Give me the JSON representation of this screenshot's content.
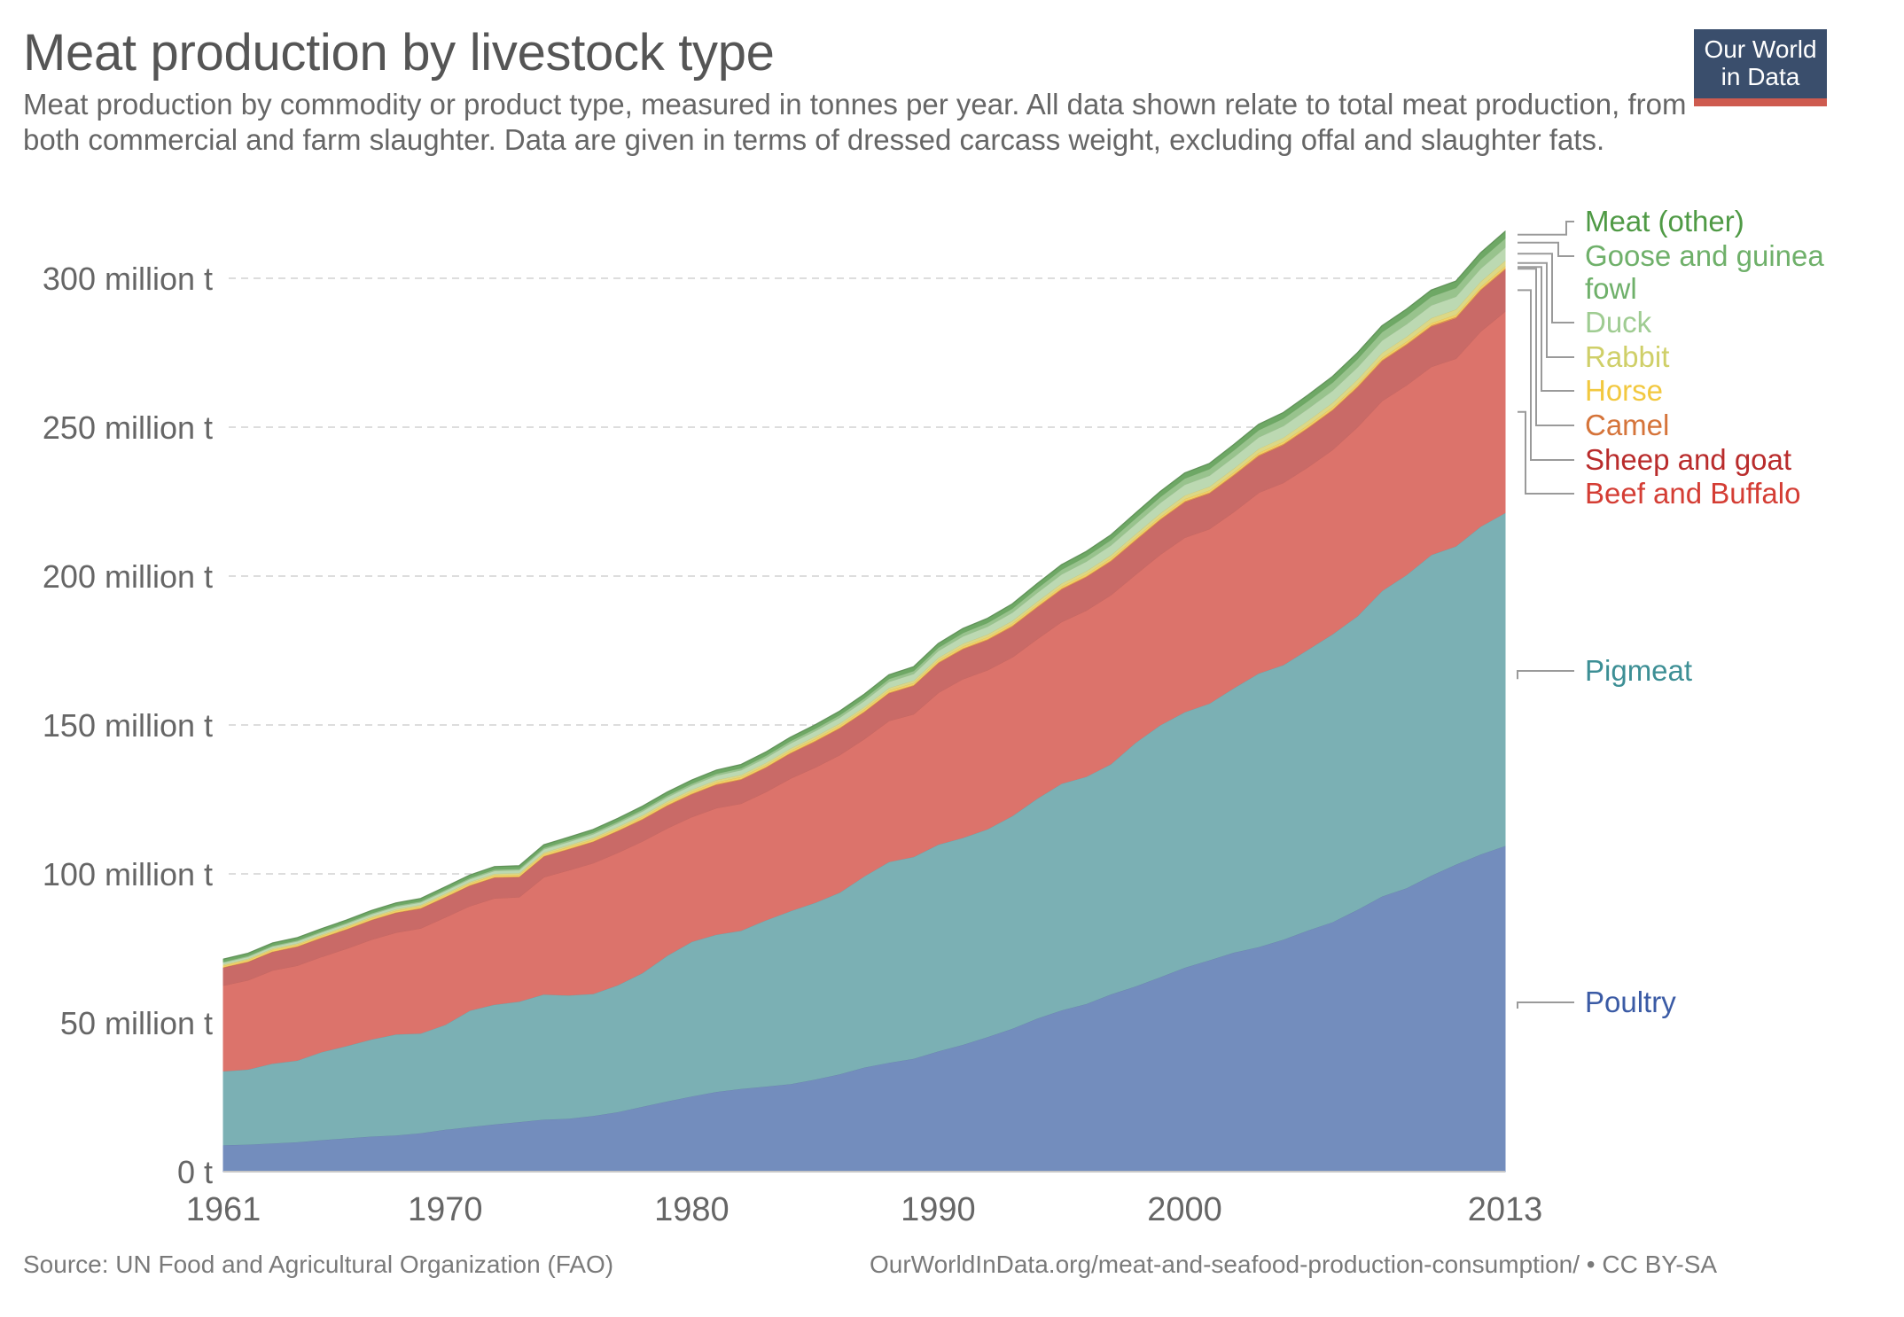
{
  "header": {
    "title": "Meat production by livestock type",
    "subtitle": "Meat production by commodity or product type, measured in tonnes per year. All data shown relate to total meat production, from both commercial and farm slaughter. Data are given in terms of dressed carcass weight, excluding offal and slaughter fats."
  },
  "logo": {
    "line1": "Our World",
    "line2": "in Data",
    "bg_color": "#3a4e6c",
    "accent_color": "#ce5b4f"
  },
  "footer": {
    "source": "Source: UN Food and Agricultural Organization (FAO)",
    "license": "OurWorldInData.org/meat-and-seafood-production-consumption/ • CC BY-SA"
  },
  "chart_data": {
    "type": "area",
    "stacked": true,
    "title": "Meat production by livestock type",
    "xlabel": "",
    "ylabel": "",
    "unit": "million tonnes",
    "x": [
      1961,
      1962,
      1963,
      1964,
      1965,
      1966,
      1967,
      1968,
      1969,
      1970,
      1971,
      1972,
      1973,
      1974,
      1975,
      1976,
      1977,
      1978,
      1979,
      1980,
      1981,
      1982,
      1983,
      1984,
      1985,
      1986,
      1987,
      1988,
      1989,
      1990,
      1991,
      1992,
      1993,
      1994,
      1995,
      1996,
      1997,
      1998,
      1999,
      2000,
      2001,
      2002,
      2003,
      2004,
      2005,
      2006,
      2007,
      2008,
      2009,
      2010,
      2011,
      2012,
      2013
    ],
    "xlim": [
      1961,
      2013
    ],
    "ylim": [
      0,
      315
    ],
    "x_ticks": [
      1961,
      1970,
      1980,
      1990,
      2000,
      2013
    ],
    "x_tick_labels": [
      "1961",
      "1970",
      "1980",
      "1990",
      "2000",
      "2013"
    ],
    "y_ticks": [
      0,
      50,
      100,
      150,
      200,
      250,
      300
    ],
    "y_tick_labels": [
      "0 t",
      "50 million t",
      "100 million t",
      "150 million t",
      "200 million t",
      "250 million t",
      "300 million t"
    ],
    "grid": "horizontal-dashed",
    "legend_placement": "right",
    "series": [
      {
        "name": "Poultry",
        "color": "#738dbd",
        "label_color": "#3b5ba5",
        "values": [
          9.0,
          9.2,
          9.6,
          10.0,
          10.7,
          11.3,
          11.9,
          12.3,
          13.0,
          14.2,
          15.1,
          16.0,
          16.8,
          17.6,
          17.9,
          18.8,
          20.1,
          21.9,
          23.7,
          25.4,
          26.9,
          27.9,
          28.7,
          29.5,
          31.0,
          32.8,
          35.1,
          36.7,
          38.0,
          40.5,
          42.7,
          45.3,
          48.1,
          51.5,
          54.3,
          56.4,
          59.6,
          62.3,
          65.4,
          68.6,
          71.1,
          73.7,
          75.5,
          78.0,
          81.1,
          83.9,
          88.0,
          92.5,
          95.3,
          99.5,
          103.2,
          106.6,
          109.5
        ]
      },
      {
        "name": "Pigmeat",
        "color": "#7bb0b4",
        "label_color": "#3d8f95",
        "values": [
          24.8,
          25.2,
          26.8,
          27.4,
          29.6,
          31.0,
          32.6,
          33.9,
          33.5,
          35.2,
          39.1,
          40.2,
          40.4,
          42.0,
          41.4,
          41.0,
          42.6,
          44.9,
          48.9,
          51.9,
          52.8,
          53.1,
          55.8,
          58.1,
          59.4,
          61.0,
          64.2,
          67.4,
          67.8,
          69.4,
          69.5,
          69.8,
          71.4,
          73.8,
          76.1,
          76.3,
          77.3,
          81.8,
          84.6,
          85.8,
          86.2,
          88.8,
          91.9,
          92.2,
          94.3,
          96.7,
          98.6,
          102.6,
          105.2,
          107.7,
          106.9,
          110.1,
          111.8
        ]
      },
      {
        "name": "Beef and Buffalo",
        "color": "#dc736b",
        "label_color": "#d43d34",
        "values": [
          28.8,
          30.0,
          31.3,
          31.9,
          32.0,
          32.7,
          33.5,
          34.2,
          35.3,
          36.1,
          35.1,
          35.7,
          35.1,
          39.4,
          42.0,
          43.9,
          44.5,
          44.2,
          42.8,
          41.9,
          42.5,
          42.7,
          43.1,
          44.5,
          45.4,
          46.2,
          46.1,
          47.4,
          47.9,
          51.0,
          53.3,
          53.4,
          53.3,
          53.6,
          54.3,
          55.8,
          56.8,
          56.5,
          57.3,
          58.6,
          58.6,
          59.2,
          60.7,
          61.2,
          61.3,
          61.9,
          63.5,
          63.8,
          63.7,
          63.2,
          63.0,
          65.5,
          67.7
        ]
      },
      {
        "name": "Sheep and goat",
        "color": "#c96a67",
        "label_color": "#b92c2c",
        "values": [
          6.0,
          6.1,
          6.2,
          6.3,
          6.3,
          6.4,
          6.5,
          6.6,
          6.6,
          6.7,
          6.8,
          6.9,
          6.7,
          6.9,
          7.0,
          7.1,
          7.2,
          7.3,
          7.5,
          7.6,
          7.8,
          8.0,
          8.1,
          8.4,
          8.7,
          8.9,
          9.0,
          9.2,
          9.5,
          9.9,
          10.0,
          10.1,
          10.3,
          10.6,
          10.9,
          11.2,
          11.3,
          11.4,
          11.6,
          11.9,
          11.9,
          12.2,
          12.3,
          12.7,
          13.0,
          13.2,
          13.3,
          13.4,
          13.5,
          13.5,
          13.6,
          13.8,
          14.0
        ]
      },
      {
        "name": "Camel",
        "color": "#e4974f",
        "label_color": "#d5743a",
        "values": [
          0.15,
          0.15,
          0.16,
          0.16,
          0.17,
          0.17,
          0.18,
          0.18,
          0.19,
          0.19,
          0.2,
          0.2,
          0.21,
          0.21,
          0.22,
          0.22,
          0.23,
          0.24,
          0.24,
          0.25,
          0.25,
          0.26,
          0.26,
          0.27,
          0.27,
          0.28,
          0.28,
          0.29,
          0.29,
          0.3,
          0.3,
          0.31,
          0.31,
          0.32,
          0.32,
          0.33,
          0.33,
          0.34,
          0.34,
          0.35,
          0.35,
          0.36,
          0.36,
          0.37,
          0.37,
          0.38,
          0.38,
          0.39,
          0.39,
          0.4,
          0.4,
          0.41,
          0.42
        ]
      },
      {
        "name": "Horse",
        "color": "#f2d165",
        "label_color": "#f2c83f",
        "values": [
          0.55,
          0.56,
          0.57,
          0.58,
          0.58,
          0.59,
          0.6,
          0.6,
          0.61,
          0.62,
          0.62,
          0.63,
          0.63,
          0.64,
          0.64,
          0.65,
          0.65,
          0.66,
          0.66,
          0.67,
          0.67,
          0.68,
          0.68,
          0.68,
          0.69,
          0.69,
          0.7,
          0.7,
          0.7,
          0.71,
          0.71,
          0.71,
          0.72,
          0.72,
          0.72,
          0.73,
          0.73,
          0.73,
          0.74,
          0.74,
          0.74,
          0.75,
          0.75,
          0.75,
          0.76,
          0.76,
          0.76,
          0.77,
          0.77,
          0.77,
          0.78,
          0.78,
          0.78
        ]
      },
      {
        "name": "Rabbit",
        "color": "#dcd886",
        "label_color": "#cfcf68",
        "values": [
          0.4,
          0.41,
          0.42,
          0.43,
          0.44,
          0.45,
          0.46,
          0.47,
          0.48,
          0.49,
          0.5,
          0.52,
          0.53,
          0.55,
          0.57,
          0.59,
          0.61,
          0.63,
          0.65,
          0.67,
          0.69,
          0.71,
          0.73,
          0.75,
          0.77,
          0.79,
          0.81,
          0.83,
          0.85,
          0.87,
          0.89,
          0.91,
          0.93,
          0.95,
          0.98,
          1.0,
          1.05,
          1.1,
          1.15,
          1.2,
          1.25,
          1.3,
          1.35,
          1.4,
          1.45,
          1.5,
          1.55,
          1.6,
          1.65,
          1.7,
          1.75,
          1.8,
          1.85
        ]
      },
      {
        "name": "Duck",
        "color": "#bcd9b2",
        "label_color": "#9fcc92",
        "values": [
          0.6,
          0.62,
          0.65,
          0.68,
          0.7,
          0.73,
          0.76,
          0.8,
          0.83,
          0.87,
          0.9,
          0.95,
          1.0,
          1.05,
          1.1,
          1.15,
          1.2,
          1.27,
          1.34,
          1.4,
          1.48,
          1.56,
          1.64,
          1.72,
          1.8,
          1.9,
          2.0,
          2.1,
          2.2,
          2.3,
          2.45,
          2.6,
          2.75,
          2.9,
          3.05,
          3.2,
          3.3,
          3.4,
          3.5,
          3.6,
          3.7,
          3.8,
          3.85,
          3.9,
          4.0,
          4.05,
          4.1,
          4.15,
          4.2,
          4.25,
          4.3,
          4.35,
          4.4
        ]
      },
      {
        "name": "Goose and guinea fowl",
        "color": "#98c38d",
        "label_color": "#6fb06a",
        "values": [
          0.3,
          0.31,
          0.32,
          0.33,
          0.34,
          0.35,
          0.36,
          0.37,
          0.38,
          0.4,
          0.42,
          0.44,
          0.46,
          0.48,
          0.5,
          0.52,
          0.55,
          0.58,
          0.6,
          0.63,
          0.66,
          0.7,
          0.74,
          0.78,
          0.82,
          0.86,
          0.9,
          0.95,
          1.0,
          1.05,
          1.15,
          1.25,
          1.35,
          1.5,
          1.6,
          1.7,
          1.8,
          1.9,
          2.0,
          2.1,
          2.2,
          2.3,
          2.4,
          2.5,
          2.6,
          2.7,
          2.75,
          2.8,
          2.85,
          2.9,
          2.95,
          3.0,
          3.05
        ]
      },
      {
        "name": "Meat (other)",
        "color": "#6ea865",
        "label_color": "#4f9a45",
        "values": [
          0.8,
          0.8,
          0.81,
          0.82,
          0.83,
          0.84,
          0.85,
          0.86,
          0.87,
          0.88,
          0.9,
          0.92,
          0.94,
          0.96,
          0.98,
          1.0,
          1.02,
          1.05,
          1.08,
          1.1,
          1.12,
          1.15,
          1.18,
          1.2,
          1.22,
          1.25,
          1.28,
          1.3,
          1.33,
          1.36,
          1.4,
          1.44,
          1.48,
          1.52,
          1.56,
          1.6,
          1.64,
          1.68,
          1.72,
          1.76,
          1.8,
          1.84,
          1.88,
          1.92,
          1.96,
          2.0,
          2.04,
          2.08,
          2.12,
          2.16,
          2.2,
          2.24,
          2.28
        ]
      }
    ],
    "annotations": [
      "Meat (other)",
      "Goose and guinea fowl",
      "Duck",
      "Rabbit",
      "Horse",
      "Camel",
      "Sheep and goat",
      "Beef and Buffalo",
      "Pigmeat",
      "Poultry"
    ]
  }
}
